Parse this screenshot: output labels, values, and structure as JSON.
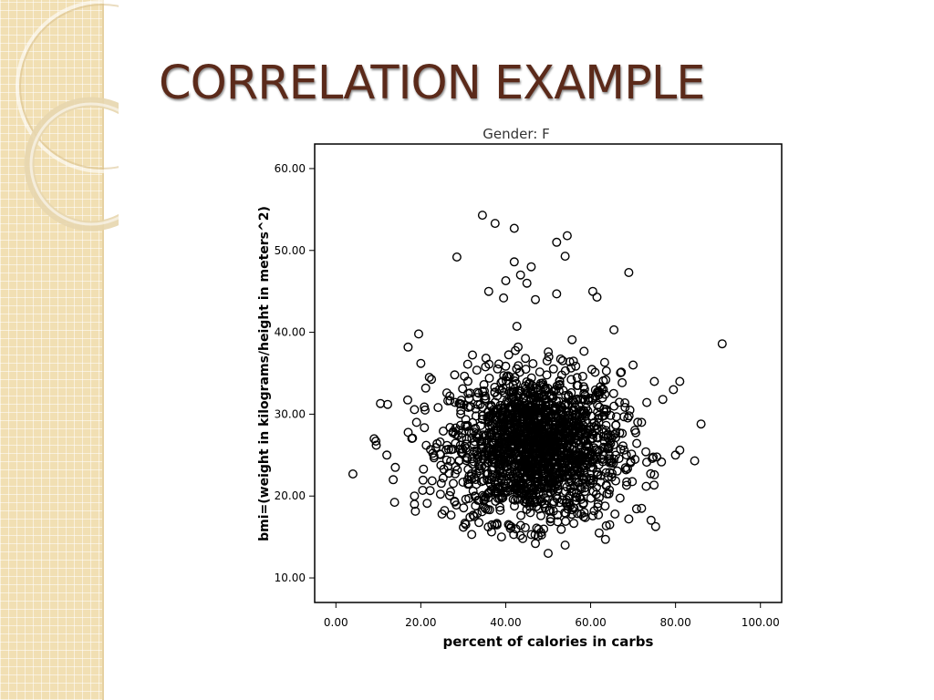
{
  "slide": {
    "title": "CORRELATION EXAMPLE"
  },
  "colors": {
    "title": "#5b2a1a",
    "sidebar": "#f1dfb3",
    "points": "#000000"
  },
  "chart_data": {
    "type": "scatter",
    "title": "Gender: F",
    "xlabel": "percent of calories in carbs",
    "ylabel": "bmi=(weight in kilograms/height in meters^2)",
    "xlim": [
      -5,
      105
    ],
    "ylim": [
      7,
      63
    ],
    "x_ticks": [
      "0.00",
      "20.00",
      "40.00",
      "60.00",
      "80.00",
      "100.00"
    ],
    "y_ticks": [
      "10.00",
      "20.00",
      "30.00",
      "40.00",
      "50.00",
      "60.00"
    ],
    "marker": "hollow-circle",
    "grid": false,
    "cluster": {
      "x_mean": 47,
      "x_sd": 10,
      "y_mean": 26,
      "y_sd": 4.5,
      "n": 1800
    },
    "notable_points": [
      {
        "x": 4,
        "y": 22.7
      },
      {
        "x": 10.5,
        "y": 31.3
      },
      {
        "x": 9,
        "y": 27
      },
      {
        "x": 9.5,
        "y": 26.2
      },
      {
        "x": 12,
        "y": 25
      },
      {
        "x": 14,
        "y": 23.5
      },
      {
        "x": 13.5,
        "y": 22
      },
      {
        "x": 18.5,
        "y": 20
      },
      {
        "x": 18.5,
        "y": 19
      },
      {
        "x": 17,
        "y": 38.2
      },
      {
        "x": 19.5,
        "y": 39.8
      },
      {
        "x": 28.5,
        "y": 49.2
      },
      {
        "x": 34.5,
        "y": 54.3
      },
      {
        "x": 37.5,
        "y": 53.3
      },
      {
        "x": 42,
        "y": 52.7
      },
      {
        "x": 52,
        "y": 51
      },
      {
        "x": 54.5,
        "y": 51.8
      },
      {
        "x": 54,
        "y": 49.3
      },
      {
        "x": 42,
        "y": 48.6
      },
      {
        "x": 46,
        "y": 48
      },
      {
        "x": 43.5,
        "y": 47
      },
      {
        "x": 36,
        "y": 45
      },
      {
        "x": 40,
        "y": 46.3
      },
      {
        "x": 45,
        "y": 46
      },
      {
        "x": 69,
        "y": 47.3
      },
      {
        "x": 60.5,
        "y": 45
      },
      {
        "x": 61.5,
        "y": 44.3
      },
      {
        "x": 39.5,
        "y": 44.2
      },
      {
        "x": 47,
        "y": 44
      },
      {
        "x": 52,
        "y": 44.7
      },
      {
        "x": 91,
        "y": 38.6
      },
      {
        "x": 86,
        "y": 28.8
      },
      {
        "x": 84.5,
        "y": 24.3
      },
      {
        "x": 81,
        "y": 34
      },
      {
        "x": 79.5,
        "y": 33
      },
      {
        "x": 81,
        "y": 25.6
      },
      {
        "x": 80,
        "y": 25
      },
      {
        "x": 77,
        "y": 31.8
      },
      {
        "x": 75,
        "y": 34
      },
      {
        "x": 50,
        "y": 13
      },
      {
        "x": 54,
        "y": 14
      },
      {
        "x": 47,
        "y": 14.2
      },
      {
        "x": 63.5,
        "y": 14.7
      },
      {
        "x": 62,
        "y": 15.5
      },
      {
        "x": 64.5,
        "y": 16.5
      },
      {
        "x": 25,
        "y": 17.8
      },
      {
        "x": 32,
        "y": 15.3
      },
      {
        "x": 39,
        "y": 15
      },
      {
        "x": 44,
        "y": 14.8
      },
      {
        "x": 69,
        "y": 17.2
      },
      {
        "x": 72,
        "y": 18.5
      },
      {
        "x": 75,
        "y": 22.6
      },
      {
        "x": 73,
        "y": 25.4
      },
      {
        "x": 72,
        "y": 29
      },
      {
        "x": 70,
        "y": 36
      },
      {
        "x": 65.5,
        "y": 40.3
      },
      {
        "x": 20,
        "y": 36.2
      },
      {
        "x": 22,
        "y": 34.5
      },
      {
        "x": 21,
        "y": 30.5
      },
      {
        "x": 19,
        "y": 29
      }
    ]
  }
}
